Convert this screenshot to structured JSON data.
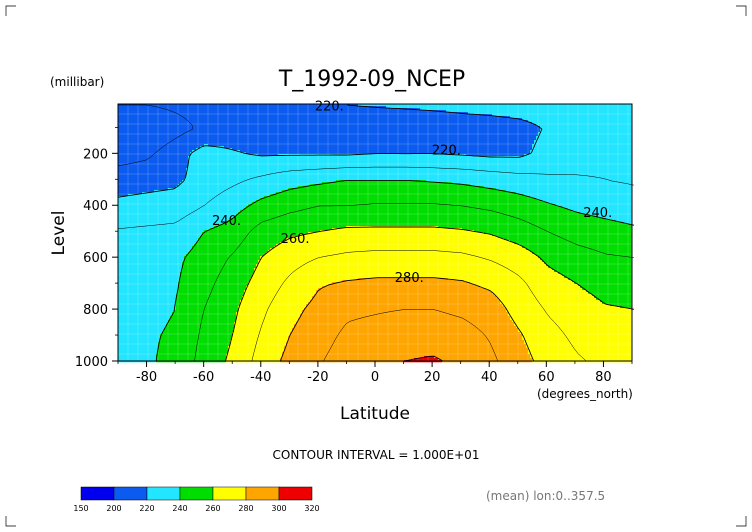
{
  "chart_data": {
    "type": "heatmap",
    "subtype": "filled-contour",
    "title": "T_1992-09_NCEP",
    "xlabel": "Latitude",
    "x_units": "(degrees_north)",
    "ylabel": "Level",
    "y_units": "(millibar)",
    "xlim": [
      -90,
      90
    ],
    "ylim": [
      1000,
      10
    ],
    "x_ticks": [
      -80,
      -60,
      -40,
      -20,
      0,
      20,
      40,
      60,
      80
    ],
    "y_ticks": [
      200,
      400,
      600,
      800,
      1000
    ],
    "contour_interval_label": "CONTOUR INTERVAL = 1.000E+01",
    "footnote": "(mean) lon:0..357.5",
    "contour_labels": [
      {
        "text": "220.",
        "lat": -16,
        "level": 20
      },
      {
        "text": "220.",
        "lat": 25,
        "level": 190
      },
      {
        "text": "240.",
        "lat": -52,
        "level": 460
      },
      {
        "text": "260.",
        "lat": -28,
        "level": 530
      },
      {
        "text": "240.",
        "lat": 78,
        "level": 430
      },
      {
        "text": "280.",
        "lat": 12,
        "level": 680
      }
    ],
    "colorbar": {
      "levels": [
        150,
        200,
        220,
        240,
        260,
        280,
        300,
        320
      ],
      "colors": [
        "#0000ee",
        "#0b5bf0",
        "#22e6ff",
        "#00dd00",
        "#ffff00",
        "#ffa500",
        "#ee0000"
      ]
    },
    "temperature_field_K": {
      "lat": [
        -90,
        -80,
        -70,
        -60,
        -50,
        -40,
        -30,
        -20,
        -10,
        0,
        10,
        20,
        30,
        40,
        50,
        60,
        70,
        80,
        90
      ],
      "level": [
        10,
        100,
        200,
        300,
        400,
        500,
        600,
        700,
        800,
        900,
        1000
      ],
      "values": [
        [
          210,
          210,
          212,
          214,
          216,
          217,
          218,
          219,
          220,
          221,
          222,
          223,
          224,
          225,
          226,
          227,
          228,
          229,
          230
        ],
        [
          200,
          200,
          206,
          212,
          215,
          214,
          214,
          213,
          212,
          211,
          210,
          211,
          213,
          214,
          216,
          221,
          225,
          227,
          228
        ],
        [
          205,
          208,
          216,
          224,
          221,
          219,
          219,
          219,
          219,
          220,
          220,
          220,
          219,
          218,
          218,
          223,
          226,
          228,
          229
        ],
        [
          216,
          217,
          218,
          224,
          228,
          232,
          236,
          238,
          240,
          240,
          240,
          239,
          238,
          236,
          234,
          232,
          231,
          230,
          229
        ],
        [
          222,
          223,
          224,
          230,
          236,
          243,
          247,
          250,
          250,
          251,
          251,
          251,
          250,
          248,
          245,
          241,
          238,
          236,
          234
        ],
        [
          231,
          232,
          233,
          240,
          244,
          254,
          258,
          260,
          262,
          262,
          262,
          262,
          261,
          259,
          255,
          250,
          246,
          244,
          242
        ],
        [
          236,
          237,
          238,
          244,
          251,
          260,
          266,
          270,
          272,
          273,
          273,
          273,
          272,
          269,
          265,
          258,
          254,
          251,
          250
        ],
        [
          236,
          237,
          239,
          247,
          255,
          264,
          272,
          279,
          281,
          282,
          282,
          282,
          281,
          278,
          272,
          264,
          260,
          256,
          255
        ],
        [
          237,
          238,
          240,
          250,
          258,
          268,
          277,
          283,
          288,
          289,
          290,
          290,
          288,
          285,
          276,
          269,
          265,
          261,
          260
        ],
        [
          238,
          239,
          241,
          252,
          260,
          271,
          280,
          286,
          292,
          294,
          296,
          296,
          294,
          289,
          281,
          273,
          268,
          265,
          264
        ],
        [
          238,
          239,
          242,
          254,
          262,
          274,
          283,
          289,
          295,
          298,
          300,
          301,
          298,
          292,
          284,
          276,
          271,
          268,
          267
        ]
      ]
    }
  },
  "text": {
    "y_units": "(millibar)",
    "title": "T_1992-09_NCEP",
    "ylabel": "Level",
    "xlabel": "Latitude",
    "x_units": "(degrees_north)",
    "interval": "CONTOUR INTERVAL = 1.000E+01",
    "footnote": "(mean) lon:0..357.5"
  }
}
